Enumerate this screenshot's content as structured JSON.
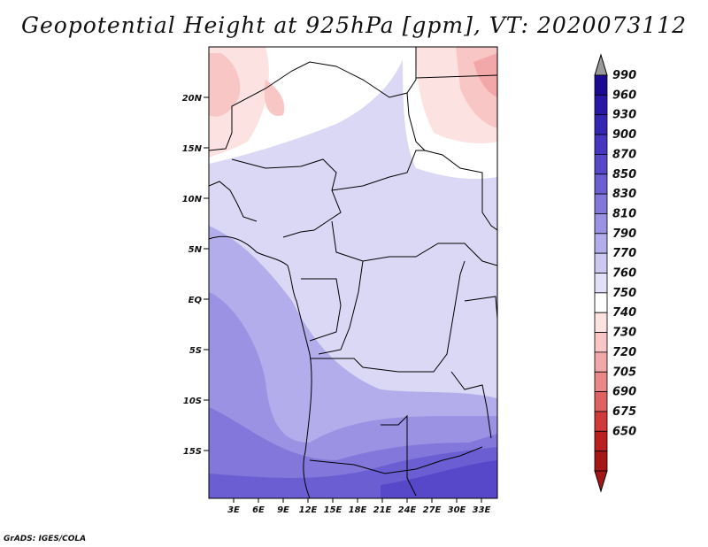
{
  "title": "Geopotential Height at 925hPa [gpm], VT: 2020073112",
  "credit": "GrADS: IGES/COLA",
  "map": {
    "lat_labels": [
      "20N",
      "15N",
      "10N",
      "5N",
      "EQ",
      "5S",
      "10S",
      "15S"
    ],
    "lon_labels": [
      "3E",
      "6E",
      "9E",
      "12E",
      "15E",
      "18E",
      "21E",
      "24E",
      "27E",
      "30E",
      "33E"
    ]
  },
  "colorbar": {
    "levels": [
      "990",
      "960",
      "930",
      "900",
      "870",
      "850",
      "830",
      "810",
      "790",
      "770",
      "760",
      "750",
      "740",
      "730",
      "720",
      "705",
      "690",
      "675",
      "650"
    ],
    "colors": [
      "#1c0b92",
      "#2817a4",
      "#3525b3",
      "#4535c0",
      "#5748c9",
      "#6b5ed2",
      "#8377db",
      "#9b92e3",
      "#b3adeb",
      "#ccc8f2",
      "#e2e0f8",
      "#ffffff",
      "#fde2e2",
      "#f9c6c6",
      "#f2a8a8",
      "#ea8787",
      "#df6161",
      "#d03a3a",
      "#bb1f1f",
      "#a51616"
    ],
    "over_color": "#999999",
    "under_color": "#a51616"
  }
}
